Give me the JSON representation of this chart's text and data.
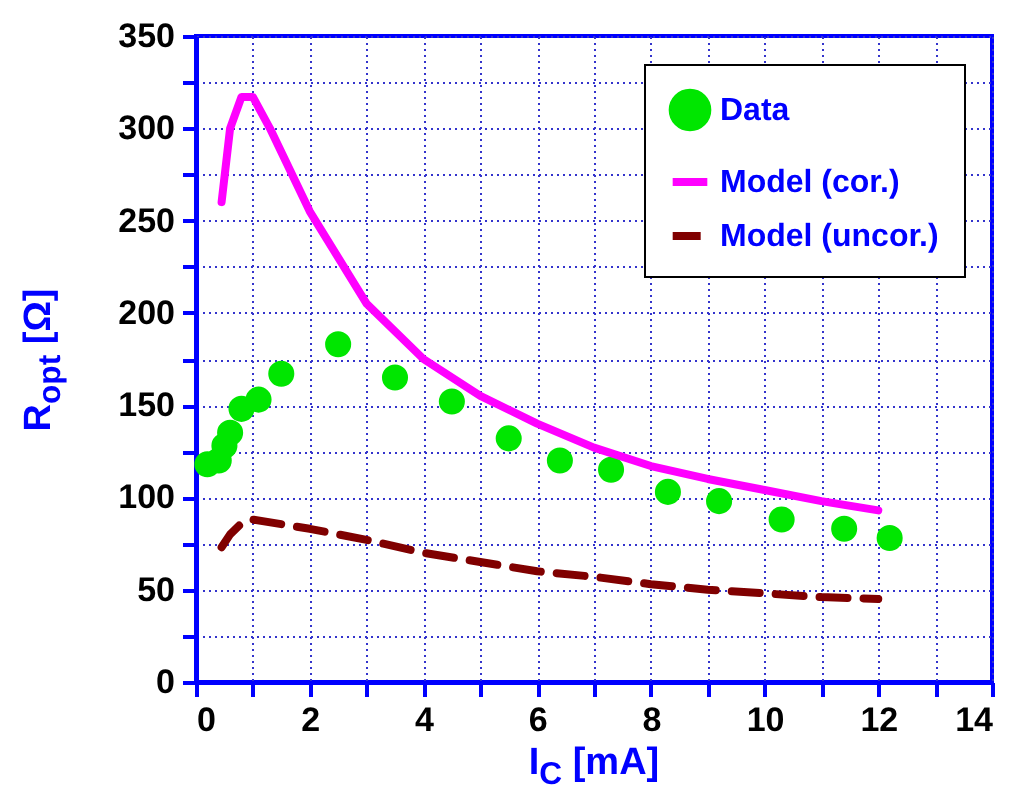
{
  "chart_data": {
    "type": "line",
    "xlabel": "I$_{C}$ [mA]",
    "ylabel": "R$_{opt}$ [Ω]",
    "xlim": [
      0,
      14
    ],
    "xticks": [
      0,
      {
        "value": 1,
        "label": null
      },
      2,
      {
        "value": 3,
        "label": null
      },
      4,
      {
        "value": 5,
        "label": null
      },
      6,
      {
        "value": 7,
        "label": null
      },
      8,
      {
        "value": 9,
        "label": null
      },
      10,
      {
        "value": 11,
        "label": null
      },
      12,
      {
        "value": 13,
        "label": null
      },
      14
    ],
    "ylim": [
      0,
      350
    ],
    "yticks": [
      0,
      {
        "value": 25,
        "label": null
      },
      50,
      {
        "value": 75,
        "label": null
      },
      100,
      {
        "value": 125,
        "label": null
      },
      150,
      {
        "value": 175,
        "label": null
      },
      200,
      {
        "value": 225,
        "label": null
      },
      250,
      {
        "value": 275,
        "label": null
      },
      300,
      {
        "value": 325,
        "label": null
      },
      350
    ],
    "grid": true,
    "legend": "top right",
    "series": [
      {
        "name": "Data",
        "type": "scatter",
        "marker": "circle",
        "color": "#00e600",
        "x": [
          0.2,
          0.4,
          0.5,
          0.6,
          0.8,
          1.1,
          1.5,
          2.5,
          3.5,
          4.5,
          5.5,
          6.4,
          7.3,
          8.3,
          9.2,
          10.3,
          11.4,
          12.2
        ],
        "values": [
          118,
          120,
          128,
          135,
          148,
          153,
          167,
          183,
          165,
          152,
          132,
          120,
          115,
          103,
          98,
          88,
          83,
          78
        ]
      },
      {
        "name": "Model (cor.)",
        "type": "line",
        "line_style": "solid",
        "color": "#ff00ff",
        "x": [
          0.45,
          0.6,
          0.8,
          1.0,
          1.3,
          2,
          3,
          4,
          5,
          6,
          7,
          8,
          9,
          10,
          11,
          12
        ],
        "values": [
          260,
          300,
          317,
          317,
          300,
          255,
          205,
          175,
          155,
          140,
          127,
          117,
          110,
          104,
          98,
          93
        ]
      },
      {
        "name": "Model (uncor.)",
        "type": "line",
        "line_style": "dashed",
        "color": "#800000",
        "x": [
          0.45,
          0.6,
          0.8,
          1,
          2,
          3,
          4,
          5,
          6,
          7,
          8,
          9,
          10,
          11,
          12
        ],
        "values": [
          73,
          80,
          86,
          88,
          83,
          77,
          70,
          65,
          60,
          57,
          53,
          50,
          48,
          46,
          45
        ]
      }
    ]
  }
}
